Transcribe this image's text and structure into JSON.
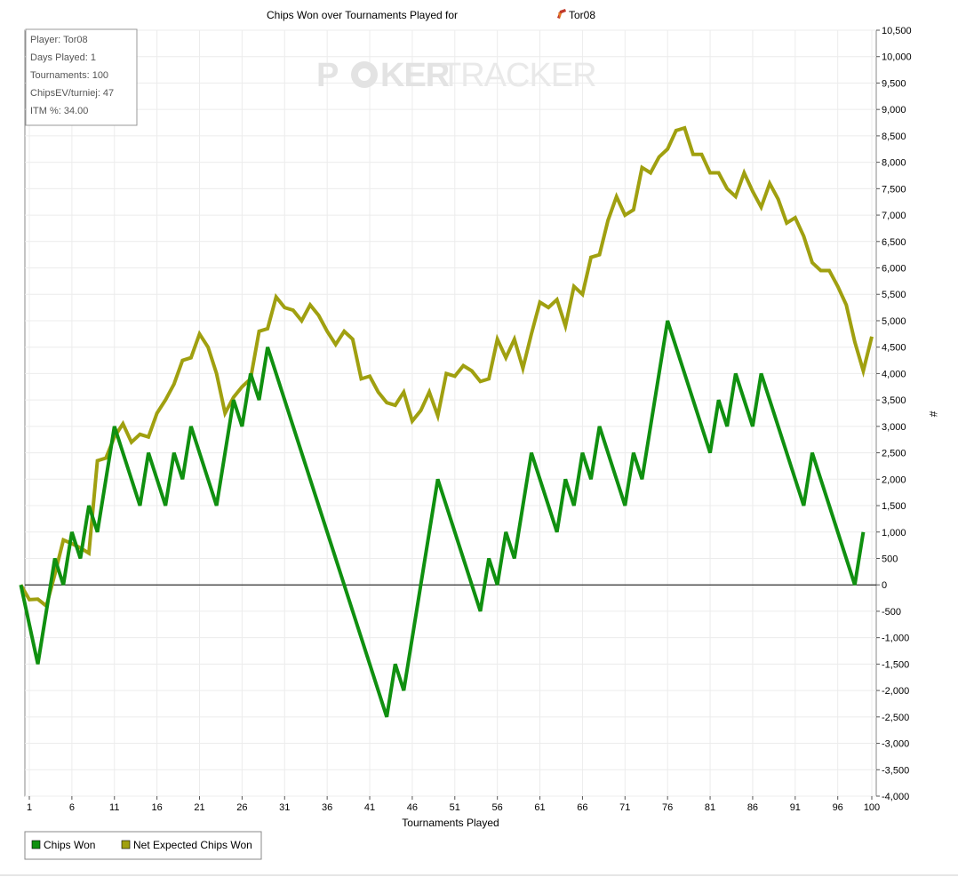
{
  "chart_data": {
    "type": "line",
    "title": "Chips Won over Tournaments Played for",
    "player": "Tor08",
    "xlabel": "Tournaments Played",
    "ylabel": "#",
    "xlim": [
      0,
      100
    ],
    "ylim": [
      -4000,
      10500
    ],
    "x_ticks": [
      1,
      6,
      11,
      16,
      21,
      26,
      31,
      36,
      41,
      46,
      51,
      56,
      61,
      66,
      71,
      76,
      81,
      86,
      91,
      96,
      100
    ],
    "y_ticks": [
      -4000,
      -3500,
      -3000,
      -2500,
      -2000,
      -1500,
      -1000,
      -500,
      0,
      500,
      1000,
      1500,
      2000,
      2500,
      3000,
      3500,
      4000,
      4500,
      5000,
      5500,
      6000,
      6500,
      7000,
      7500,
      8000,
      8500,
      9000,
      9500,
      10000,
      10500
    ],
    "y_tick_labels": [
      "-4,000",
      "-3,500",
      "-3,000",
      "-2,500",
      "-2,000",
      "-1,500",
      "-1,000",
      "-500",
      "0",
      "500",
      "1,000",
      "1,500",
      "2,000",
      "2,500",
      "3,000",
      "3,500",
      "4,000",
      "4,500",
      "5,000",
      "5,500",
      "6,000",
      "6,500",
      "7,000",
      "7,500",
      "8,000",
      "8,500",
      "9,000",
      "9,500",
      "10,000",
      "10,500"
    ],
    "grid": true,
    "legend_position": "bottom-left",
    "series": [
      {
        "name": "Chips Won",
        "color": "#109010",
        "values": [
          0,
          -750,
          -1500,
          -500,
          500,
          0,
          1000,
          500,
          1500,
          1000,
          2000,
          3000,
          2500,
          2000,
          1500,
          2500,
          2000,
          1500,
          2500,
          2000,
          3000,
          2500,
          2000,
          1500,
          2500,
          3500,
          3000,
          4000,
          3500,
          4500,
          4000,
          3500,
          3000,
          2500,
          2000,
          1500,
          1000,
          500,
          0,
          -500,
          -1000,
          -1500,
          -2000,
          -2500,
          -1500,
          -2000,
          -1000,
          0,
          1000,
          2000,
          1500,
          1000,
          500,
          0,
          -500,
          500,
          0,
          1000,
          500,
          1500,
          2500,
          2000,
          1500,
          1000,
          2000,
          1500,
          2500,
          2000,
          3000,
          2500,
          2000,
          1500,
          2500,
          2000,
          3000,
          4000,
          5000,
          4500,
          4000,
          3500,
          3000,
          2500,
          3500,
          3000,
          4000,
          3500,
          3000,
          4000,
          3500,
          3000,
          2500,
          2000,
          1500,
          2500,
          2000,
          1500,
          1000,
          500,
          0,
          1000
        ]
      },
      {
        "name": "Net Expected Chips Won",
        "color": "#a0a010",
        "values": [
          0,
          -280,
          -270,
          -400,
          200,
          850,
          780,
          700,
          600,
          2350,
          2400,
          2800,
          3050,
          2700,
          2850,
          2800,
          3250,
          3500,
          3800,
          4250,
          4300,
          4750,
          4500,
          4000,
          3250,
          3550,
          3750,
          3900,
          4800,
          4850,
          5450,
          5250,
          5200,
          5000,
          5300,
          5100,
          4800,
          4550,
          4800,
          4650,
          3900,
          3950,
          3650,
          3450,
          3400,
          3650,
          3100,
          3300,
          3650,
          3200,
          4000,
          3950,
          4150,
          4050,
          3850,
          3900,
          4650,
          4300,
          4650,
          4100,
          4750,
          5350,
          5250,
          5400,
          4900,
          5650,
          5500,
          6200,
          6250,
          6900,
          7350,
          7000,
          7100,
          7900,
          7800,
          8100,
          8250,
          8600,
          8650,
          8150,
          8150,
          7800,
          7800,
          7500,
          7350,
          7800,
          7450,
          7150,
          7600,
          7300,
          6850,
          6950,
          6600,
          6100,
          5950,
          5950,
          5650,
          5300,
          4600,
          4050,
          4700
        ]
      }
    ]
  },
  "info_box": {
    "player": "Player: Tor08",
    "days": "Days Played: 1",
    "tournaments": "Tournaments: 100",
    "chipsev": "ChipsEV/turniej: 47",
    "itm": "ITM %: 34.00"
  },
  "watermark": {
    "part1": "P",
    "part2": "KER",
    "part3": "TRACKER"
  },
  "legend": {
    "items": [
      {
        "label": "Chips Won",
        "color": "#109010"
      },
      {
        "label": "Net Expected Chips Won",
        "color": "#a0a010"
      }
    ]
  }
}
